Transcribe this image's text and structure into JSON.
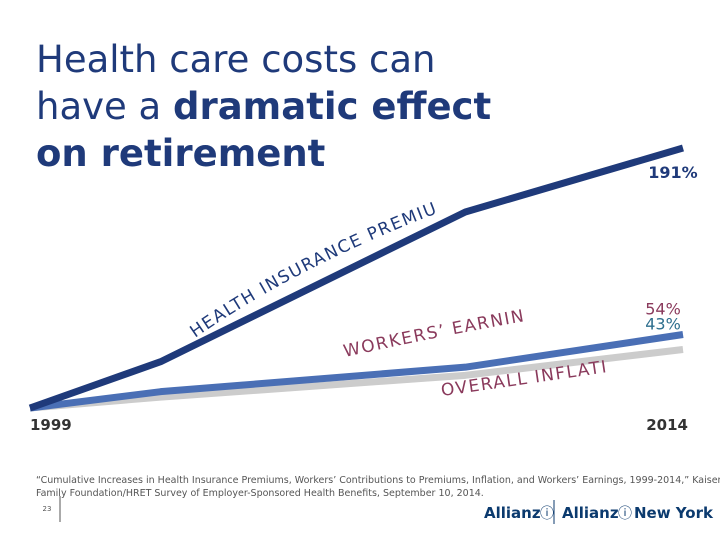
{
  "chart_data": {
    "type": "line",
    "title": {
      "line1": "Health care costs can",
      "line2_a": "have a ",
      "line2_b": "dramatic effect",
      "line3": "on retirement"
    },
    "x": [
      1999,
      2002,
      2009,
      2014
    ],
    "xlim": [
      1999,
      2014
    ],
    "xticks": [
      1999,
      2014
    ],
    "ylim": [
      0,
      191
    ],
    "series": [
      {
        "name": "HEALTH INSURANCE PREMIUMS",
        "color": "#1f3a7a",
        "label_color": "#1f3a7a",
        "values": [
          0,
          34,
          144,
          191
        ],
        "value_labels": [
          null,
          null,
          null,
          "191%"
        ]
      },
      {
        "name": "WORKERS’ EARNINGS",
        "color": "#4a6fb5",
        "label_color": "#8a3a5c",
        "values": [
          0,
          12,
          30,
          54
        ],
        "value_labels": [
          null,
          null,
          null,
          "54%"
        ]
      },
      {
        "name": "OVERALL INFLATION",
        "color": "#cccccc",
        "label_color": "#8a3a5c",
        "values": [
          0,
          8,
          24,
          43
        ],
        "value_labels": [
          null,
          null,
          null,
          "43%"
        ]
      }
    ]
  },
  "footnote": {
    "line1": "“Cumulative Increases in Health Insurance Premiums, Workers’ Contributions to Premiums, Inflation, and Workers’ Earnings, 1999-2014,” Kaiser",
    "line2": "Family Foundation/HRET Survey of Employer-Sponsored Health Benefits, September 10, 2014."
  },
  "page_number": "23",
  "logos": {
    "left": "Allianz",
    "right_a": "Allianz",
    "right_b": "New York"
  }
}
